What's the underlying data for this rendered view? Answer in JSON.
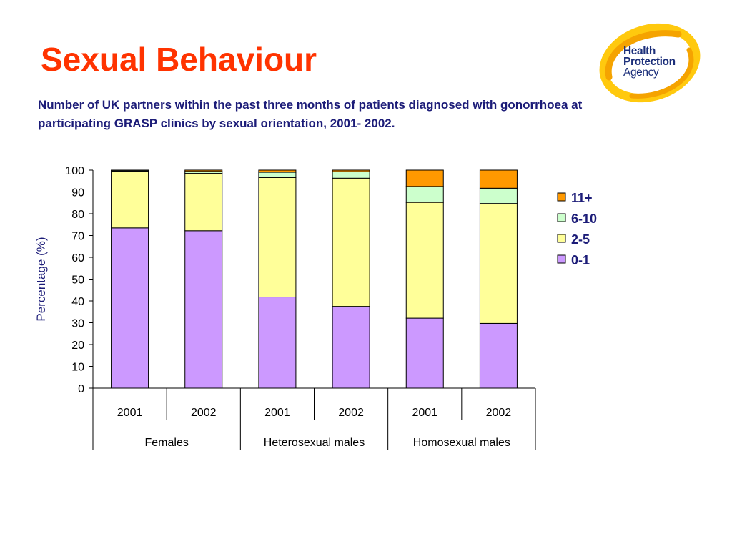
{
  "slide": {
    "title": "Sexual Behaviour",
    "subtitle": "Number of UK partners within the past three months of patients diagnosed with gonorrhoea at participating GRASP clinics by sexual orientation, 2001- 2002."
  },
  "logo": {
    "line1": "Health",
    "line2": "Protection",
    "line3": "Agency"
  },
  "colors": {
    "title": "#ff3300",
    "text_dark_blue": "#1c1c78",
    "logo_orange": "#f5a300",
    "logo_yellow": "#ffc90e"
  },
  "chart_data": {
    "type": "bar",
    "stacked": true,
    "ylabel": "Percentage (%)",
    "ylim": [
      0,
      100
    ],
    "yticks": [
      0,
      10,
      20,
      30,
      40,
      50,
      60,
      70,
      80,
      90,
      100
    ],
    "categories": [
      "2001",
      "2002",
      "2001",
      "2002",
      "2001",
      "2002"
    ],
    "groups": [
      {
        "label": "Females",
        "span": 2
      },
      {
        "label": "Heterosexual males",
        "span": 2
      },
      {
        "label": "Homosexual males",
        "span": 2
      }
    ],
    "legend_position": "right",
    "series": [
      {
        "name": "0-1",
        "color": "#cc99ff",
        "values": [
          73.5,
          72.2,
          41.8,
          37.5,
          32.1,
          29.7
        ]
      },
      {
        "name": "2-5",
        "color": "#ffff99",
        "values": [
          26.0,
          26.3,
          54.8,
          58.8,
          53.1,
          55.0
        ]
      },
      {
        "name": "6-10",
        "color": "#ccffcc",
        "values": [
          0.4,
          0.9,
          2.4,
          3.0,
          7.3,
          7.0
        ]
      },
      {
        "name": "11+",
        "color": "#ff9900",
        "values": [
          0.1,
          0.6,
          1.0,
          0.7,
          7.5,
          8.3
        ]
      }
    ]
  }
}
